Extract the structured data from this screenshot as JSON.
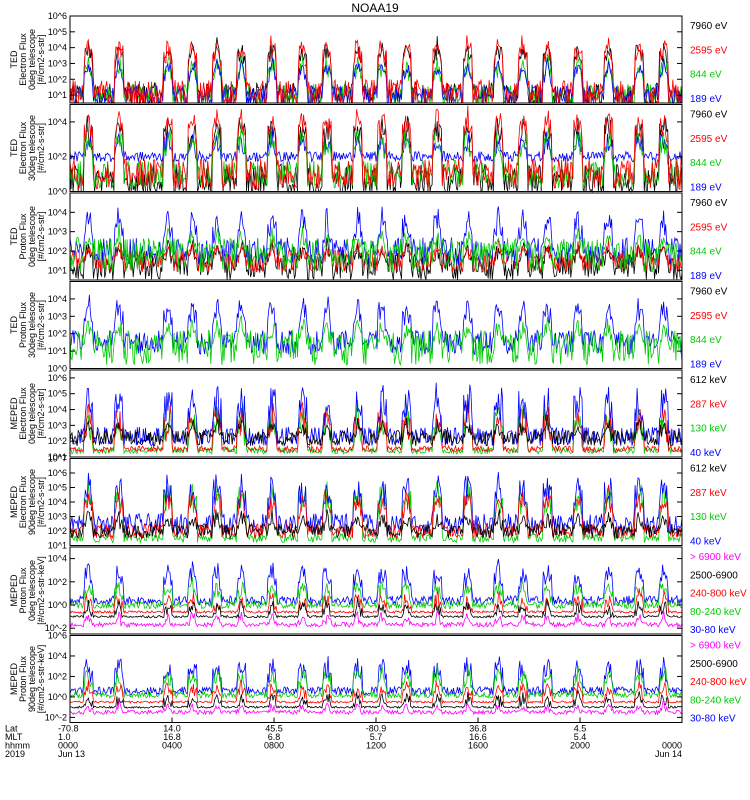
{
  "chart_data": {
    "type": "line",
    "title": "NOAA19",
    "panels": [
      {
        "ylabel": [
          "TED",
          "Electron Flux",
          "0deg telescope",
          "[#/cm2-s-str]"
        ],
        "yticks": [
          "10^1",
          "10^2",
          "10^3",
          "10^4",
          "10^5",
          "10^6"
        ],
        "ylim_exp": [
          0.5,
          6
        ],
        "legend": [
          {
            "label": "7960 eV",
            "color": "#000000"
          },
          {
            "label": "2595 eV",
            "color": "#ff0000"
          },
          {
            "label": "844 eV",
            "color": "#00cc00"
          },
          {
            "label": "189 eV",
            "color": "#0000ff"
          }
        ],
        "series": [
          {
            "color": "#000000",
            "base": 1.0,
            "spikes": [
              3.5,
              4.5
            ],
            "noise": 0.8
          },
          {
            "color": "#00cc00",
            "base": 1.0,
            "spikes": [
              2.5,
              3.5
            ],
            "noise": 0.7
          },
          {
            "color": "#0000ff",
            "base": 1.0,
            "spikes": [
              2.5,
              3.3
            ],
            "noise": 0.6
          },
          {
            "color": "#ff0000",
            "base": 1.1,
            "spikes": [
              3.5,
              4.8
            ],
            "noise": 0.9
          }
        ]
      },
      {
        "ylabel": [
          "TED",
          "Electron Flux",
          "30deg telescope",
          "[#/cm2-s-str]"
        ],
        "yticks": [
          "10^0",
          "10^2",
          "10^4"
        ],
        "ylim_exp": [
          0,
          5
        ],
        "legend": [
          {
            "label": "7960 eV",
            "color": "#000000"
          },
          {
            "label": "2595 eV",
            "color": "#ff0000"
          },
          {
            "label": "844 eV",
            "color": "#00cc00"
          },
          {
            "label": "189 eV",
            "color": "#0000ff"
          }
        ],
        "series": [
          {
            "color": "#000000",
            "base": 0.6,
            "spikes": [
              3.0,
              4.5
            ],
            "noise": 1.0
          },
          {
            "color": "#0000ff",
            "base": 2.0,
            "spikes": [
              2.5,
              3.5
            ],
            "noise": 0.3
          },
          {
            "color": "#00cc00",
            "base": 1.0,
            "spikes": [
              2.5,
              3.8
            ],
            "noise": 0.8
          },
          {
            "color": "#ff0000",
            "base": 1.0,
            "spikes": [
              3.5,
              4.8
            ],
            "noise": 0.9
          }
        ]
      },
      {
        "ylabel": [
          "TED",
          "Proton Flux",
          "0deg telescope",
          "[#/cm2-s-str]"
        ],
        "yticks": [
          "10^1",
          "10^2",
          "10^3",
          "10^4"
        ],
        "ylim_exp": [
          0.5,
          5
        ],
        "legend": [
          {
            "label": "7960 eV",
            "color": "#000000"
          },
          {
            "label": "2595 eV",
            "color": "#ff0000"
          },
          {
            "label": "844 eV",
            "color": "#00cc00"
          },
          {
            "label": "189 eV",
            "color": "#0000ff"
          }
        ],
        "series": [
          {
            "color": "#000000",
            "base": 1.2,
            "spikes": [
              2.0,
              2.6
            ],
            "noise": 0.7
          },
          {
            "color": "#ff0000",
            "base": 1.5,
            "spikes": [
              2.0,
              2.5
            ],
            "noise": 0.6
          },
          {
            "color": "#0000ff",
            "base": 2.0,
            "spikes": [
              3.0,
              4.3
            ],
            "noise": 0.7
          },
          {
            "color": "#00cc00",
            "base": 1.8,
            "spikes": [
              2.5,
              3.2
            ],
            "noise": 0.9
          }
        ]
      },
      {
        "ylabel": [
          "TED",
          "Proton Flux",
          "30deg telescope",
          "[#/cm2-s-str]"
        ],
        "yticks": [
          "10^0",
          "10^1",
          "10^2",
          "10^3",
          "10^4"
        ],
        "ylim_exp": [
          0,
          5
        ],
        "legend": [
          {
            "label": "7960 eV",
            "color": "#000000"
          },
          {
            "label": "2595 eV",
            "color": "#ff0000"
          },
          {
            "label": "844 eV",
            "color": "#00cc00"
          },
          {
            "label": "189 eV",
            "color": "#0000ff"
          }
        ],
        "series": [
          {
            "color": "#0000ff",
            "base": 1.5,
            "spikes": [
              3.0,
              4.2
            ],
            "noise": 0.7
          },
          {
            "color": "#00cc00",
            "base": 1.2,
            "spikes": [
              2.0,
              3.0
            ],
            "noise": 1.0
          }
        ]
      },
      {
        "ylabel": [
          "MEPED",
          "Electron Flux",
          "0deg telescope",
          "[#/cm2-s-str]"
        ],
        "yticks": [
          "10^1",
          "10^2",
          "10^3",
          "10^4",
          "10^5",
          "10^6"
        ],
        "ylim_exp": [
          1,
          6.5
        ],
        "legend": [
          {
            "label": "612 keV",
            "color": "#000000"
          },
          {
            "label": "287 keV",
            "color": "#ff0000"
          },
          {
            "label": "130 keV",
            "color": "#00cc00"
          },
          {
            "label": "40 keV",
            "color": "#0000ff"
          }
        ],
        "series": [
          {
            "color": "#00cc00",
            "base": 1.4,
            "spikes": [
              2.5,
              4.5
            ],
            "noise": 0.2
          },
          {
            "color": "#ff0000",
            "base": 1.5,
            "spikes": [
              2.5,
              4.5
            ],
            "noise": 0.2
          },
          {
            "color": "#0000ff",
            "base": 2.3,
            "spikes": [
              3.5,
              5.8
            ],
            "noise": 0.6
          },
          {
            "color": "#000000",
            "base": 2.2,
            "spikes": [
              2.8,
              3.5
            ],
            "noise": 0.5
          }
        ]
      },
      {
        "ylabel": [
          "MEPED",
          "Electron Flux",
          "90deg telescope",
          "[#/cm2-s-str]"
        ],
        "yticks": [
          "10^1",
          "10^2",
          "10^3",
          "10^4",
          "10^5",
          "10^6",
          "10^7"
        ],
        "ylim_exp": [
          1,
          7
        ],
        "legend": [
          {
            "label": "612 keV",
            "color": "#000000"
          },
          {
            "label": "287 keV",
            "color": "#ff0000"
          },
          {
            "label": "130 keV",
            "color": "#00cc00"
          },
          {
            "label": "40 keV",
            "color": "#0000ff"
          }
        ],
        "series": [
          {
            "color": "#00cc00",
            "base": 1.5,
            "spikes": [
              3.5,
              5.5
            ],
            "noise": 0.3
          },
          {
            "color": "#0000ff",
            "base": 2.5,
            "spikes": [
              4.0,
              6.0
            ],
            "noise": 0.7
          },
          {
            "color": "#ff0000",
            "base": 2.0,
            "spikes": [
              3.5,
              5.0
            ],
            "noise": 0.5
          },
          {
            "color": "#000000",
            "base": 2.0,
            "spikes": [
              2.5,
              3.5
            ],
            "noise": 0.5
          }
        ]
      },
      {
        "ylabel": [
          "MEPED",
          "Proton Flux",
          "0deg telescope",
          "[#/cm2-s-str-keV]"
        ],
        "yticks": [
          "10^-2",
          "10^0",
          "10^2",
          "10^4"
        ],
        "ylim_exp": [
          -2.5,
          5
        ],
        "legend": [
          {
            "label": "> 6900 keV",
            "color": "#ff00ff"
          },
          {
            "label": "2500-6900",
            "color": "#000000"
          },
          {
            "label": "240-800 keV",
            "color": "#ff0000"
          },
          {
            "label": "80-240 keV",
            "color": "#00cc00"
          },
          {
            "label": "30-80 keV",
            "color": "#0000ff"
          }
        ],
        "series": [
          {
            "color": "#0000ff",
            "base": 0.4,
            "spikes": [
              2.0,
              3.8
            ],
            "noise": 0.4
          },
          {
            "color": "#00cc00",
            "base": 0.0,
            "spikes": [
              1.0,
              2.2
            ],
            "noise": 0.3
          },
          {
            "color": "#ff0000",
            "base": -0.6,
            "spikes": [
              0.0,
              1.2
            ],
            "noise": 0.1
          },
          {
            "color": "#000000",
            "base": -1.0,
            "spikes": [
              -0.5,
              0.5
            ],
            "noise": 0.1
          },
          {
            "color": "#ff00ff",
            "base": -1.7,
            "spikes": [
              -1.2,
              -0.6
            ],
            "noise": 0.2
          }
        ]
      },
      {
        "ylabel": [
          "MEPED",
          "Proton Flux",
          "90deg telescope",
          "[#/cm2-s-str-keV]"
        ],
        "yticks": [
          "10^-2",
          "10^0",
          "10^2",
          "10^4",
          "10^6"
        ],
        "ylim_exp": [
          -2.5,
          6
        ],
        "legend": [
          {
            "label": "> 6900 keV",
            "color": "#ff00ff"
          },
          {
            "label": "2500-6900",
            "color": "#000000"
          },
          {
            "label": "240-800 keV",
            "color": "#ff0000"
          },
          {
            "label": "80-240 keV",
            "color": "#00cc00"
          },
          {
            "label": "30-80 keV",
            "color": "#0000ff"
          }
        ],
        "series": [
          {
            "color": "#0000ff",
            "base": 0.6,
            "spikes": [
              2.0,
              4.0
            ],
            "noise": 0.4
          },
          {
            "color": "#00cc00",
            "base": 0.2,
            "spikes": [
              1.5,
              3.0
            ],
            "noise": 0.3
          },
          {
            "color": "#ff0000",
            "base": -0.5,
            "spikes": [
              0.5,
              1.5
            ],
            "noise": 0.1
          },
          {
            "color": "#000000",
            "base": -1.0,
            "spikes": [
              -0.5,
              0.5
            ],
            "noise": 0.1
          },
          {
            "color": "#ff00ff",
            "base": -1.5,
            "spikes": [
              -1.0,
              -0.5
            ],
            "noise": 0.2
          }
        ]
      }
    ],
    "x_rows": [
      {
        "label": "Lat",
        "values": [
          "-70.8",
          "14.0",
          "45.5",
          "-80.9",
          "36.8",
          "4.5"
        ]
      },
      {
        "label": "MLT",
        "values": [
          "1.0",
          "16.8",
          "6.8",
          "5.7",
          "16.6",
          "5.4"
        ]
      },
      {
        "label": "hhmm",
        "values": [
          "0000",
          "0400",
          "0800",
          "1200",
          "1600",
          "2000",
          "0000"
        ]
      },
      {
        "label": "2019",
        "values": [
          "Jun 13",
          "",
          "",
          "",
          "",
          "",
          "Jun 14"
        ]
      }
    ],
    "spike_positions": [
      0.03,
      0.08,
      0.16,
      0.2,
      0.24,
      0.28,
      0.33,
      0.38,
      0.42,
      0.47,
      0.51,
      0.55,
      0.6,
      0.65,
      0.7,
      0.74,
      0.78,
      0.83,
      0.88,
      0.93,
      0.97
    ]
  }
}
